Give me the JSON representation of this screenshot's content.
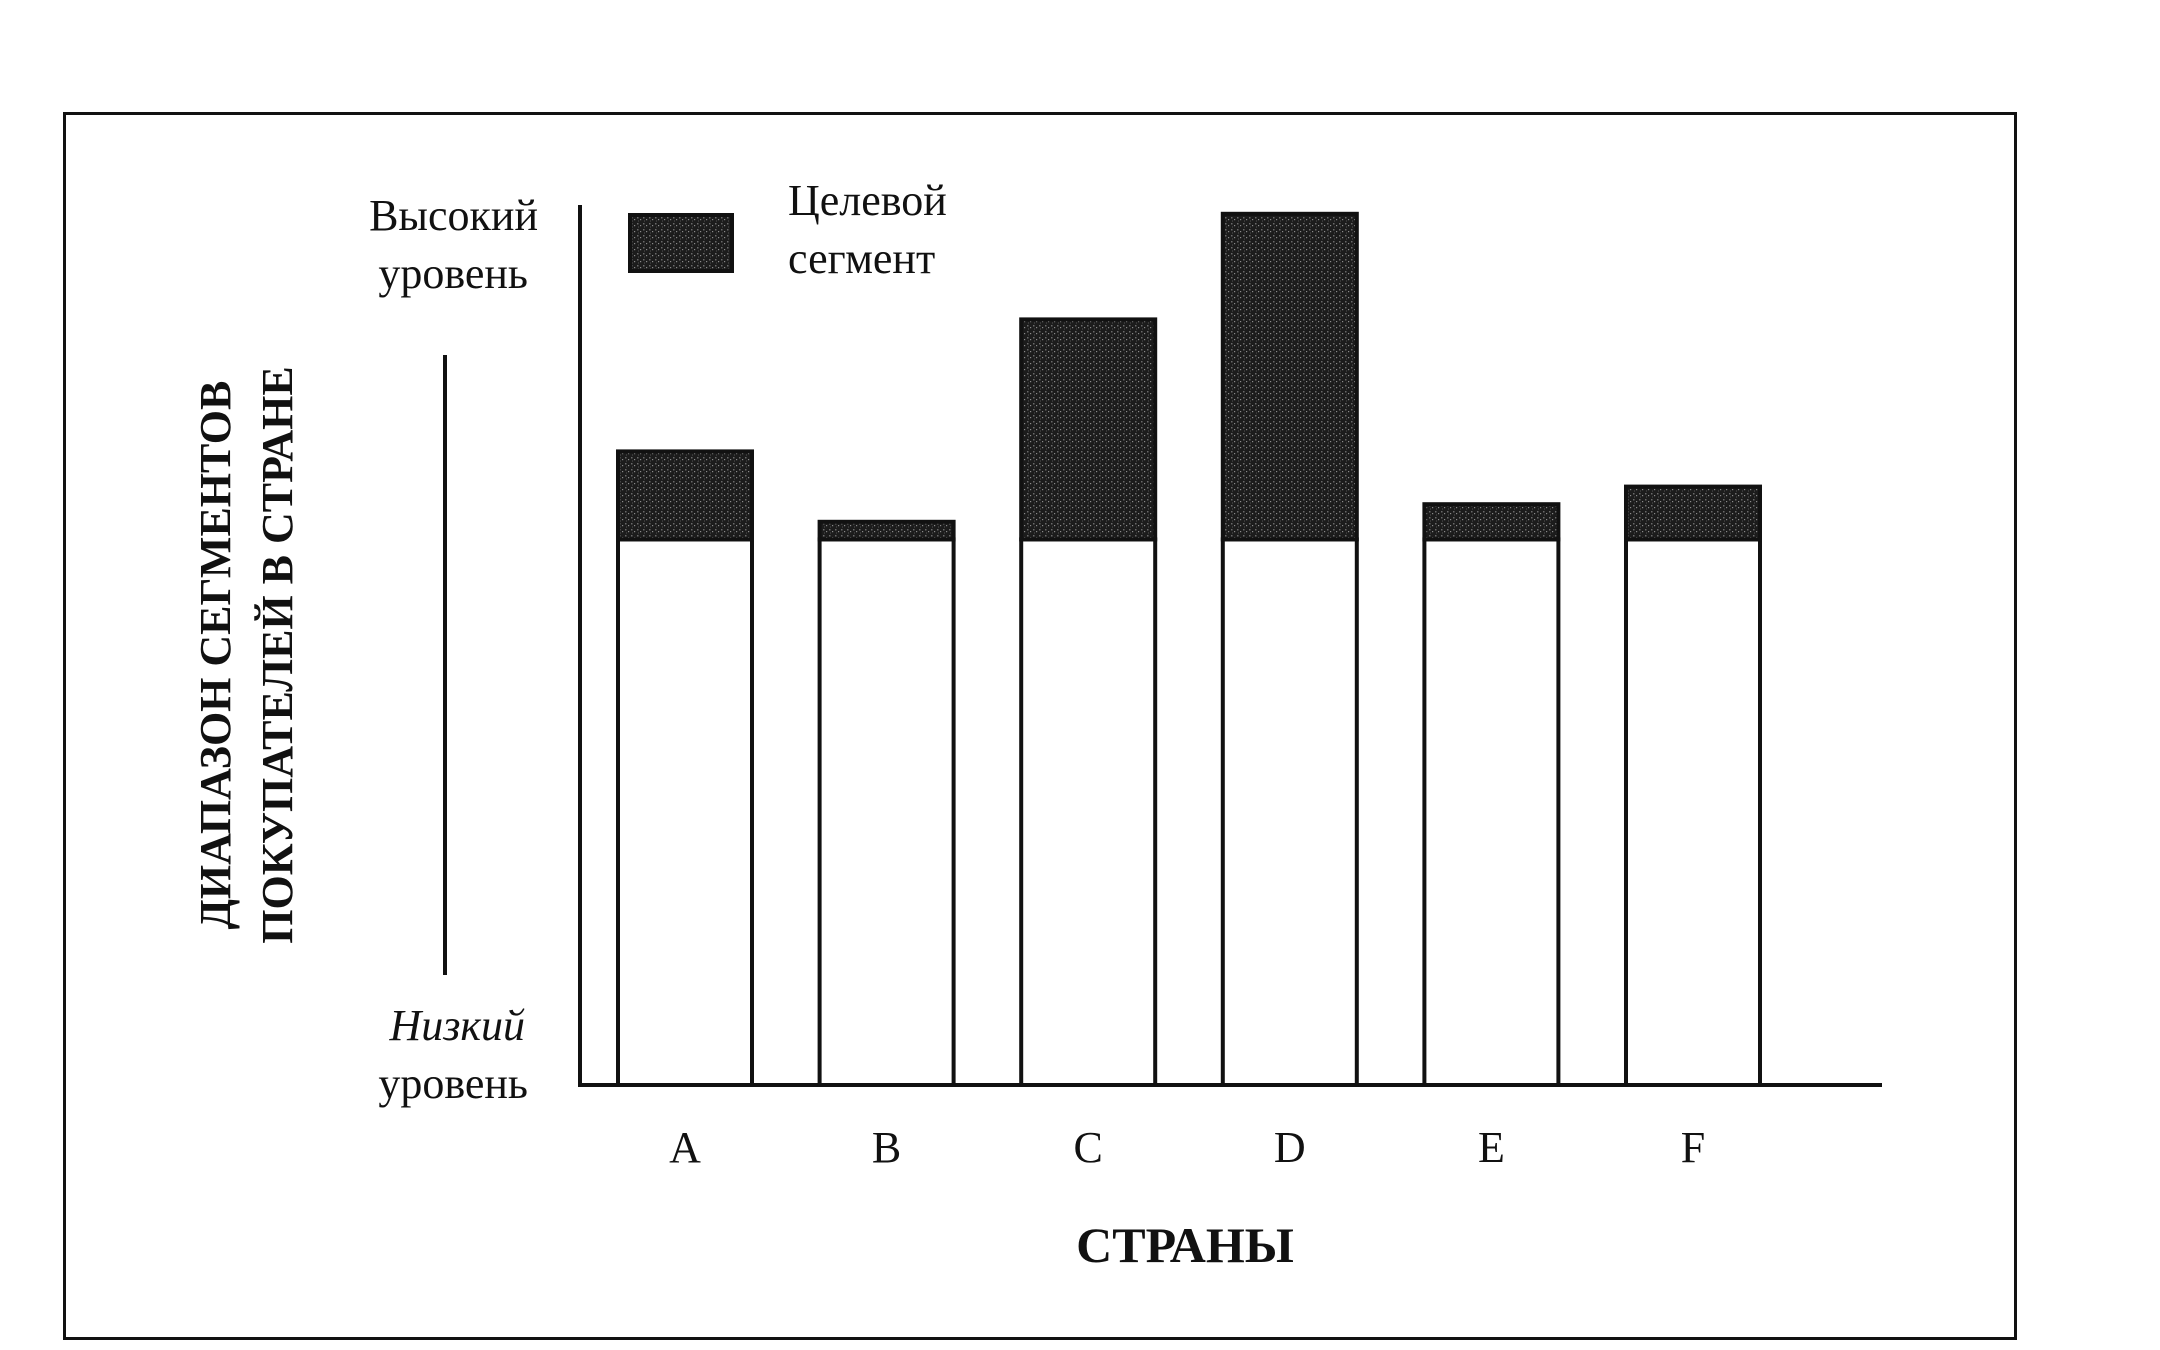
{
  "chart_data": {
    "type": "bar",
    "stacked": true,
    "title": "",
    "xlabel": "СТРАНЫ",
    "ylabel_lines": [
      "ДИАПАЗОН СЕГМЕНТОВ",
      "ПОКУПАТЕЛЕЙ В СТРАНЕ"
    ],
    "y_top_label": [
      "Высокий",
      "уровень"
    ],
    "y_bottom_label": [
      "Низкий",
      "уровень"
    ],
    "categories": [
      "A",
      "B",
      "C",
      "D",
      "E",
      "F"
    ],
    "series": [
      {
        "name": "",
        "values": [
          62,
          62,
          62,
          62,
          62,
          62
        ],
        "color": "#ffffff"
      },
      {
        "name": "Целевой сегмент",
        "values": [
          10,
          2,
          25,
          37,
          4,
          6
        ],
        "color": "#2a2a2a"
      }
    ],
    "ylim": [
      0,
      100
    ],
    "grid": false,
    "legend": {
      "position": "top-left",
      "label_lines": [
        "Целевой",
        "сегмент"
      ]
    }
  }
}
